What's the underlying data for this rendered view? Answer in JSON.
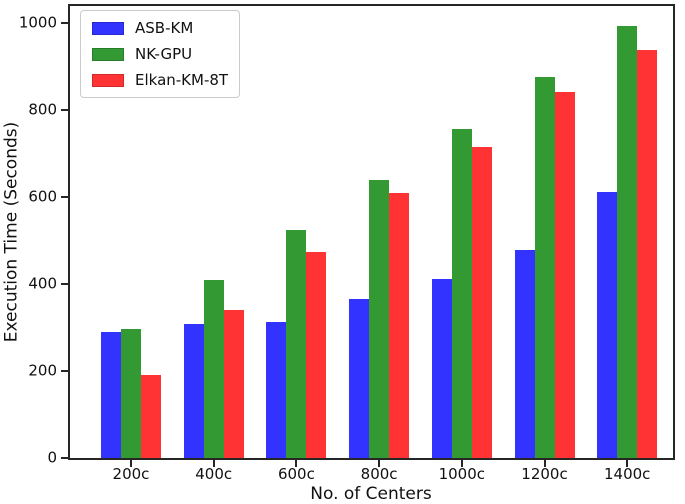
{
  "chart_data": {
    "type": "bar",
    "title": "",
    "xlabel": "No. of Centers",
    "ylabel": "Execution Time (Seconds)",
    "categories": [
      "200c",
      "400c",
      "600c",
      "800c",
      "1000c",
      "1200c",
      "1400c"
    ],
    "series": [
      {
        "name": "ASB-KM",
        "color": "#3333ff",
        "values": [
          291,
          308,
          314,
          365,
          411,
          478,
          611
        ]
      },
      {
        "name": "NK-GPU",
        "color": "#339933",
        "values": [
          297,
          410,
          525,
          640,
          757,
          876,
          993
        ]
      },
      {
        "name": "Elkan-KM-8T",
        "color": "#ff3333",
        "values": [
          192,
          340,
          475,
          610,
          715,
          843,
          938
        ]
      }
    ],
    "ylim": [
      0,
      1040
    ],
    "yticks": [
      0,
      200,
      400,
      600,
      800,
      1000
    ],
    "grid": false,
    "legend_position": "upper-left",
    "axis_color": "#262626",
    "background": "#ffffff"
  }
}
